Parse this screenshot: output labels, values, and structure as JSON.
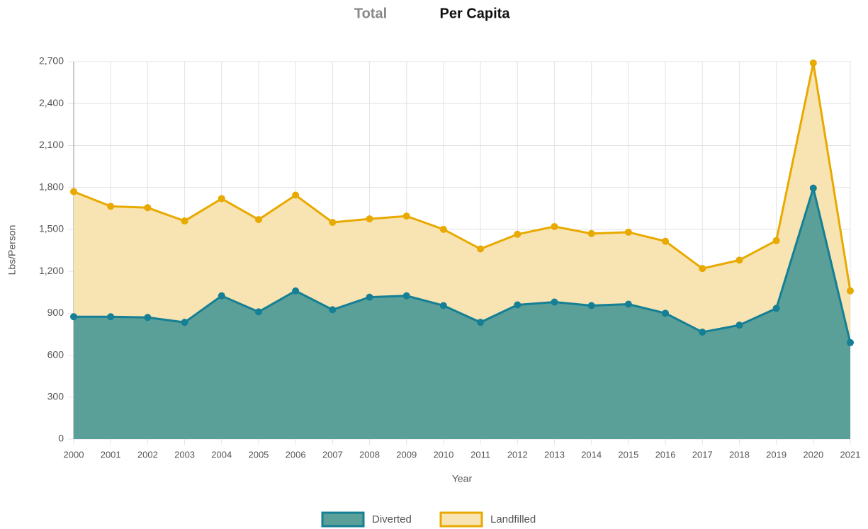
{
  "tabs": [
    "Total",
    "Per Capita"
  ],
  "chart_data": {
    "type": "line",
    "fill": true,
    "xlabel": "Year",
    "ylabel": "Lbs/Person",
    "categories": [
      "2000",
      "2001",
      "2002",
      "2003",
      "2004",
      "2005",
      "2006",
      "2007",
      "2008",
      "2009",
      "2010",
      "2011",
      "2012",
      "2013",
      "2014",
      "2015",
      "2016",
      "2017",
      "2018",
      "2019",
      "2020",
      "2021"
    ],
    "series": [
      {
        "name": "Diverted",
        "color": "#157f95",
        "fill_color": "#5a9f98",
        "values": [
          875,
          875,
          870,
          835,
          1025,
          910,
          1060,
          925,
          1015,
          1025,
          955,
          835,
          960,
          980,
          955,
          965,
          900,
          765,
          815,
          935,
          1795,
          690
        ]
      },
      {
        "name": "Landfilled",
        "color": "#e8a900",
        "fill_color": "#f8e4b2",
        "values": [
          1770,
          1665,
          1655,
          1560,
          1720,
          1570,
          1745,
          1550,
          1575,
          1595,
          1500,
          1360,
          1465,
          1520,
          1470,
          1480,
          1415,
          1220,
          1280,
          1420,
          2690,
          1060
        ]
      }
    ],
    "ylim": [
      0,
      2700
    ],
    "yticks": [
      0,
      {
        "value": 300,
        "label": "300"
      },
      {
        "value": 600,
        "label": "600"
      },
      {
        "value": 900,
        "label": "900"
      },
      {
        "value": 1200,
        "label": "1,200"
      },
      {
        "value": 1500,
        "label": "1,500"
      },
      {
        "value": 1800,
        "label": "1,800"
      },
      {
        "value": 2100,
        "label": "2,100"
      },
      {
        "value": 2400,
        "label": "2,400"
      },
      {
        "value": 2700,
        "label": "2,700"
      }
    ],
    "grid": true,
    "legend": "bottom"
  }
}
